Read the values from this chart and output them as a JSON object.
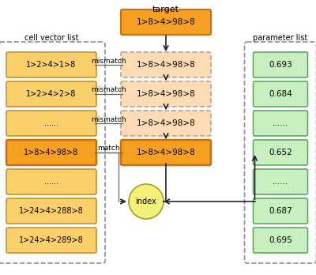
{
  "title": "target",
  "target_label": "1>8>4>98>8",
  "cell_vector_list_label": "cell vector list",
  "parameter_list_label": "parameter list",
  "cell_vectors": [
    "1>2>4>1>8",
    "1>2>4>2>8",
    "......",
    "1>8>4>98>8",
    "......",
    "1>24>4>288>8",
    "1>24>4>289>8"
  ],
  "middle_boxes": [
    "1>8>4>98>8",
    "1>8>4>98>8",
    "1>8>4>98>8",
    "1>8>4>98>8"
  ],
  "parameters": [
    "0.693",
    "0.684",
    "......",
    "0.652",
    "......",
    "0.687",
    "0.695"
  ],
  "match_labels": [
    "mismatch",
    "mismatch",
    "mismatch",
    "match"
  ],
  "index_label": "index",
  "orange_solid_face": "#F5A020",
  "orange_solid_edge": "#C87010",
  "orange_light_face": "#FBCF6A",
  "orange_light_edge": "#C89030",
  "orange_dashed_face": "#FDDCB5",
  "orange_dashed_edge": "#C0A090",
  "green_face": "#C8EFC0",
  "green_edge": "#60A860",
  "yellow_index_face": "#F5F07A",
  "yellow_index_edge": "#A0A020",
  "dashed_outer_color": "#909090",
  "arrow_color": "#222222",
  "line_color": "#666666",
  "bg_color": "#FFFFFF"
}
